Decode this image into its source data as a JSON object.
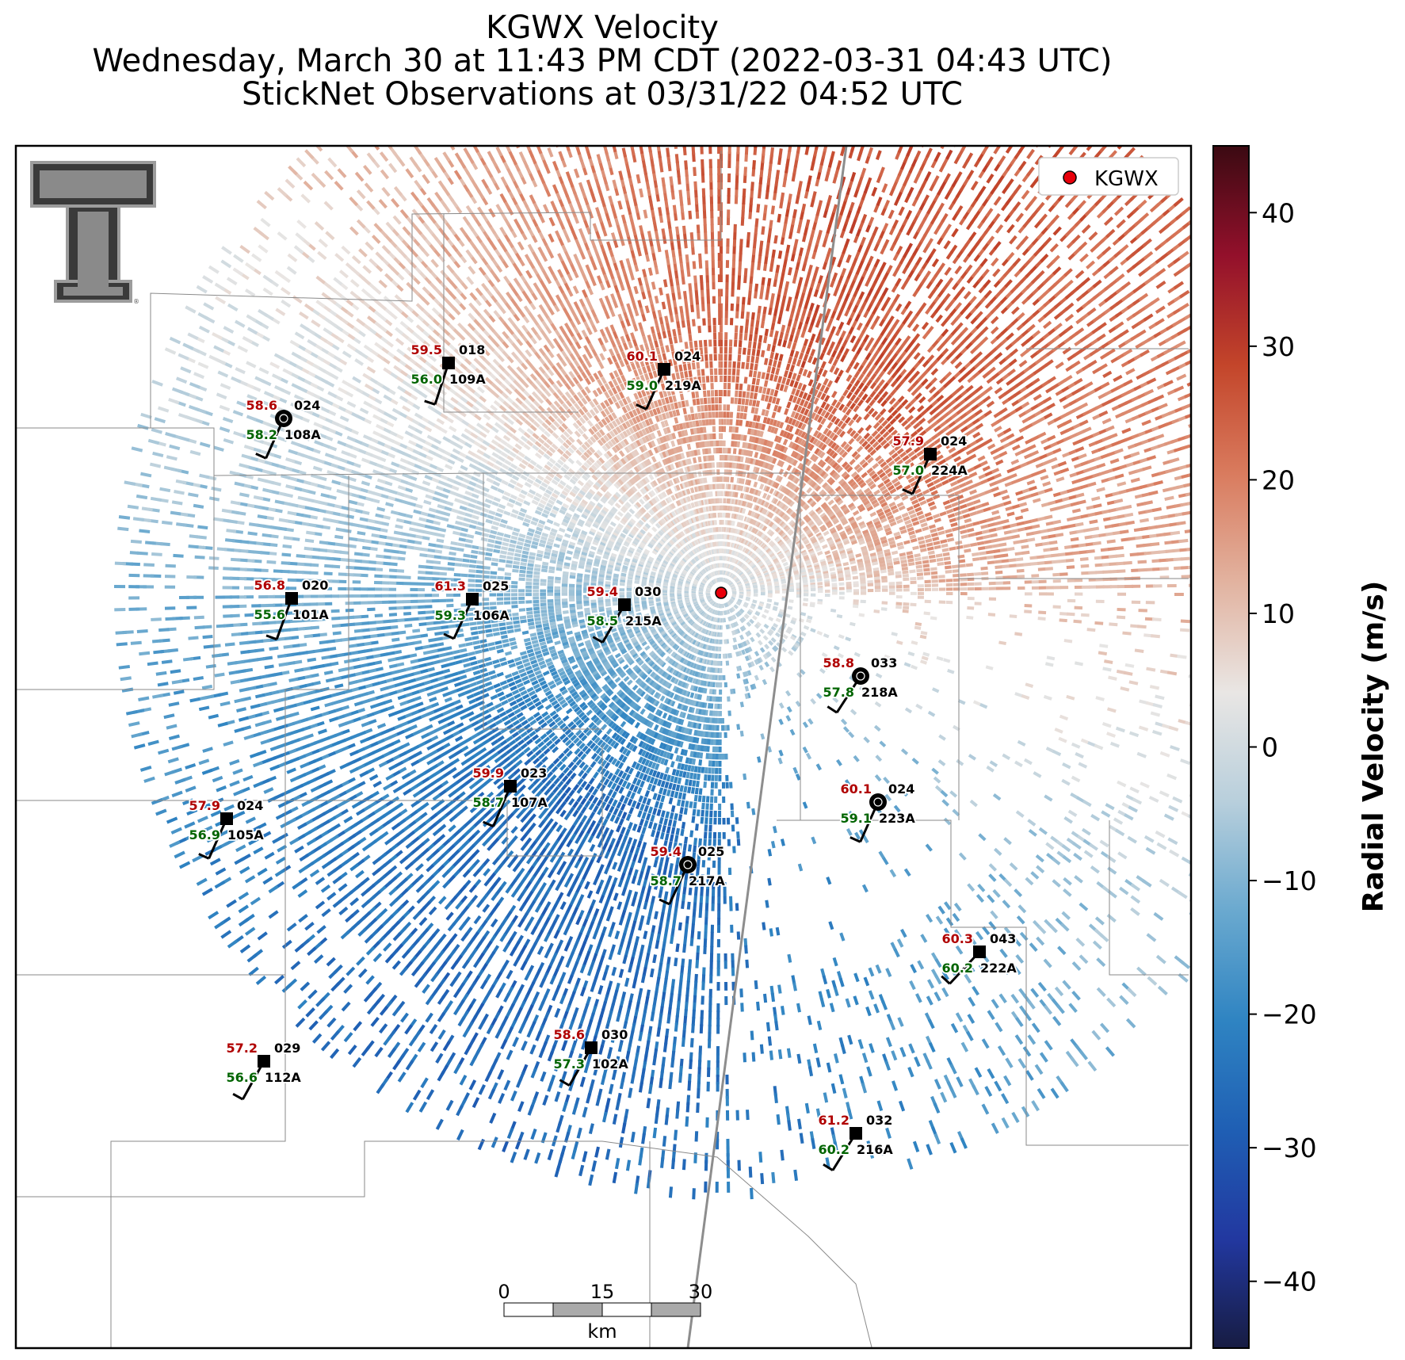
{
  "title": {
    "line1": "KGWX Velocity",
    "line2": "Wednesday, March 30 at 11:43 PM CDT (2022-03-31 04:43 UTC)",
    "line3": "StickNet Observations at 03/31/22 04:52 UTC"
  },
  "legend": {
    "label": "KGWX",
    "marker_color": "#e8000b"
  },
  "colorbar": {
    "label": "Radial Velocity (m/s)",
    "min": -45,
    "max": 45,
    "ticks": [
      "40",
      "30",
      "20",
      "10",
      "0",
      "−10",
      "−20",
      "−30",
      "−40"
    ],
    "tick_values": [
      40,
      30,
      20,
      10,
      0,
      -10,
      -20,
      -30,
      -40
    ],
    "colors": [
      "#171c42",
      "#2238a0",
      "#1f5fb4",
      "#2f84c2",
      "#6aa9cf",
      "#b8cfdc",
      "#e9e6e4",
      "#e2b3a0",
      "#d97b5e",
      "#c3452a",
      "#93102b",
      "#3b0a12"
    ]
  },
  "scale_bar": {
    "tick_labels": [
      "0",
      "15",
      "30"
    ],
    "unit": "km"
  },
  "logo": {
    "name": "Texas Tech Double T"
  },
  "temp_color": "#b00000",
  "dew_color": "#006400",
  "stations": [
    {
      "id": "109A",
      "temp": "59.5",
      "dew": "56.0",
      "dir": "018",
      "marker": "square"
    },
    {
      "id": "219A",
      "temp": "60.1",
      "dew": "59.0",
      "dir": "024",
      "marker": "square"
    },
    {
      "id": "108A",
      "temp": "58.6",
      "dew": "58.2",
      "dir": "024",
      "marker": "circle"
    },
    {
      "id": "224A",
      "temp": "57.9",
      "dew": "57.0",
      "dir": "024",
      "marker": "square"
    },
    {
      "id": "101A",
      "temp": "56.8",
      "dew": "55.6",
      "dir": "020",
      "marker": "square"
    },
    {
      "id": "106A",
      "temp": "61.3",
      "dew": "59.3",
      "dir": "025",
      "marker": "square"
    },
    {
      "id": "215A",
      "temp": "59.4",
      "dew": "58.5",
      "dir": "030",
      "marker": "square"
    },
    {
      "id": "218A",
      "temp": "58.8",
      "dew": "57.8",
      "dir": "033",
      "marker": "circle"
    },
    {
      "id": "107A",
      "temp": "59.9",
      "dew": "58.7",
      "dir": "023",
      "marker": "square"
    },
    {
      "id": "223A",
      "temp": "60.1",
      "dew": "59.1",
      "dir": "024",
      "marker": "circle"
    },
    {
      "id": "105A",
      "temp": "57.9",
      "dew": "56.9",
      "dir": "024",
      "marker": "square"
    },
    {
      "id": "217A",
      "temp": "59.4",
      "dew": "58.7",
      "dir": "025",
      "marker": "circle"
    },
    {
      "id": "222A",
      "temp": "60.3",
      "dew": "60.2",
      "dir": "043",
      "marker": "square"
    },
    {
      "id": "102A",
      "temp": "58.6",
      "dew": "57.3",
      "dir": "030",
      "marker": "square"
    },
    {
      "id": "112A",
      "temp": "57.2",
      "dew": "56.6",
      "dir": "029",
      "marker": "square"
    },
    {
      "id": "216A",
      "temp": "61.2",
      "dew": "60.2",
      "dir": "032",
      "marker": "square"
    }
  ]
}
